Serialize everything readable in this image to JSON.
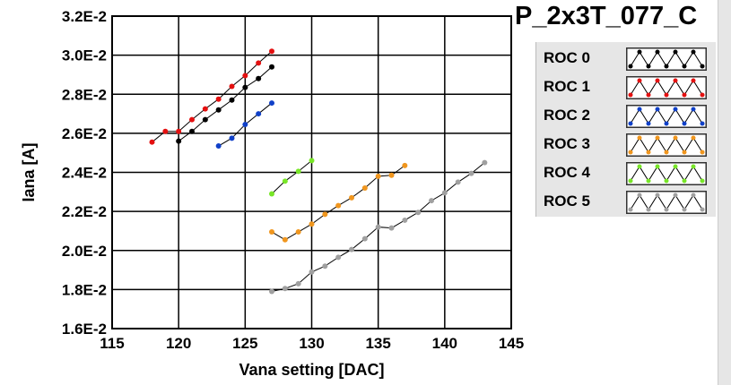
{
  "chart_data": {
    "type": "line",
    "title": "P_2x3T_077_C",
    "xlabel": "Vana setting [DAC]",
    "ylabel": "Iana [A]",
    "xlim": [
      115,
      145
    ],
    "ylim": [
      0.016,
      0.032
    ],
    "xticks": [
      "115",
      "120",
      "125",
      "130",
      "135",
      "140",
      "145"
    ],
    "yticks": [
      "1.6E-2",
      "1.8E-2",
      "2.0E-2",
      "2.2E-2",
      "2.4E-2",
      "2.6E-2",
      "2.8E-2",
      "3.0E-2",
      "3.2E-2"
    ],
    "grid": true,
    "legend_position": "right",
    "series": [
      {
        "name": "ROC 0",
        "color": "#000000",
        "x": [
          120,
          121,
          122,
          123,
          124,
          125,
          126,
          127
        ],
        "y": [
          0.0256,
          0.0261,
          0.0267,
          0.0272,
          0.0277,
          0.02835,
          0.0288,
          0.0294
        ]
      },
      {
        "name": "ROC 1",
        "color": "#e41010",
        "x": [
          118,
          119,
          120,
          121,
          122,
          123,
          124,
          125,
          126,
          127
        ],
        "y": [
          0.02555,
          0.0261,
          0.0261,
          0.0267,
          0.02725,
          0.02775,
          0.0284,
          0.02895,
          0.0296,
          0.0302
        ]
      },
      {
        "name": "ROC 2",
        "color": "#1040c8",
        "x": [
          123,
          124,
          125,
          126,
          127
        ],
        "y": [
          0.02535,
          0.02575,
          0.02645,
          0.027,
          0.02755
        ]
      },
      {
        "name": "ROC 3",
        "color": "#f0961e",
        "x": [
          127,
          128,
          129,
          130,
          131,
          132,
          133,
          134,
          135,
          136,
          137
        ],
        "y": [
          0.02095,
          0.02055,
          0.02095,
          0.02135,
          0.02185,
          0.0223,
          0.0227,
          0.0232,
          0.0238,
          0.02385,
          0.02435
        ]
      },
      {
        "name": "ROC 4",
        "color": "#78e628",
        "x": [
          127,
          128,
          129,
          130
        ],
        "y": [
          0.0229,
          0.02355,
          0.02405,
          0.0246
        ]
      },
      {
        "name": "ROC 5",
        "color": "#a0a0a0",
        "x": [
          127,
          128,
          129,
          130,
          131,
          132,
          133,
          134,
          135,
          136,
          137,
          138,
          139,
          140,
          141,
          142,
          143
        ],
        "y": [
          0.0179,
          0.01805,
          0.0183,
          0.0189,
          0.0192,
          0.01965,
          0.02005,
          0.0206,
          0.0212,
          0.02115,
          0.02155,
          0.02195,
          0.02255,
          0.02295,
          0.0235,
          0.02395,
          0.0245
        ]
      }
    ]
  }
}
